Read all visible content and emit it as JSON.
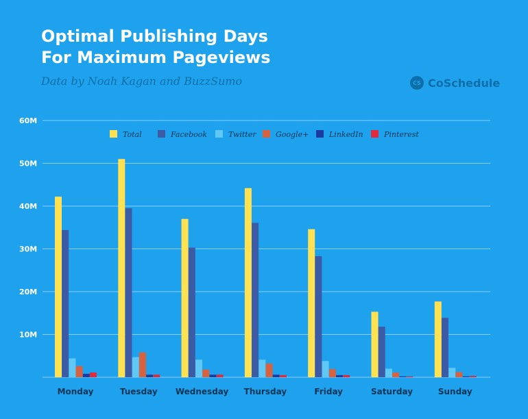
{
  "header": {
    "title_line1": "Optimal Publishing Days",
    "title_line2": "For Maximum Pageviews",
    "subtitle": "Data by Noah Kagan and BuzzSumo",
    "brand_name": "CoSchedule",
    "brand_logo_text": "CS"
  },
  "colors": {
    "background": "#1FA2EE",
    "grid": "#8CCFF6",
    "axis_text": "#ffffff",
    "day_label": "#0A3556"
  },
  "chart_data": {
    "type": "bar",
    "categories": [
      "Monday",
      "Tuesday",
      "Wednesday",
      "Thursday",
      "Friday",
      "Saturday",
      "Sunday"
    ],
    "ylim": [
      0,
      60
    ],
    "yticks": [
      10,
      20,
      30,
      40,
      50,
      60
    ],
    "ytick_labels": [
      "10M",
      "20M",
      "30M",
      "40M",
      "50M",
      "60M"
    ],
    "grid": true,
    "legend_position": "top-center",
    "series": [
      {
        "name": "Total",
        "color": "#FFE152",
        "values": [
          42.2,
          51.0,
          37.0,
          44.2,
          34.6,
          15.3,
          17.7
        ]
      },
      {
        "name": "Facebook",
        "color": "#3B5BA6",
        "values": [
          34.4,
          39.5,
          30.3,
          36.1,
          28.3,
          11.8,
          13.9
        ]
      },
      {
        "name": "Twitter",
        "color": "#5FC8F5",
        "values": [
          4.4,
          4.7,
          4.1,
          4.1,
          3.8,
          2.0,
          2.2
        ]
      },
      {
        "name": "Google+",
        "color": "#D6623F",
        "values": [
          2.6,
          5.8,
          1.8,
          3.2,
          1.9,
          1.1,
          1.2
        ]
      },
      {
        "name": "LinkedIn",
        "color": "#1A3CA0",
        "values": [
          0.8,
          0.6,
          0.6,
          0.6,
          0.5,
          0.2,
          0.2
        ]
      },
      {
        "name": "Pinterest",
        "color": "#E32A3A",
        "values": [
          1.1,
          0.6,
          0.6,
          0.5,
          0.5,
          0.2,
          0.3
        ]
      }
    ]
  }
}
